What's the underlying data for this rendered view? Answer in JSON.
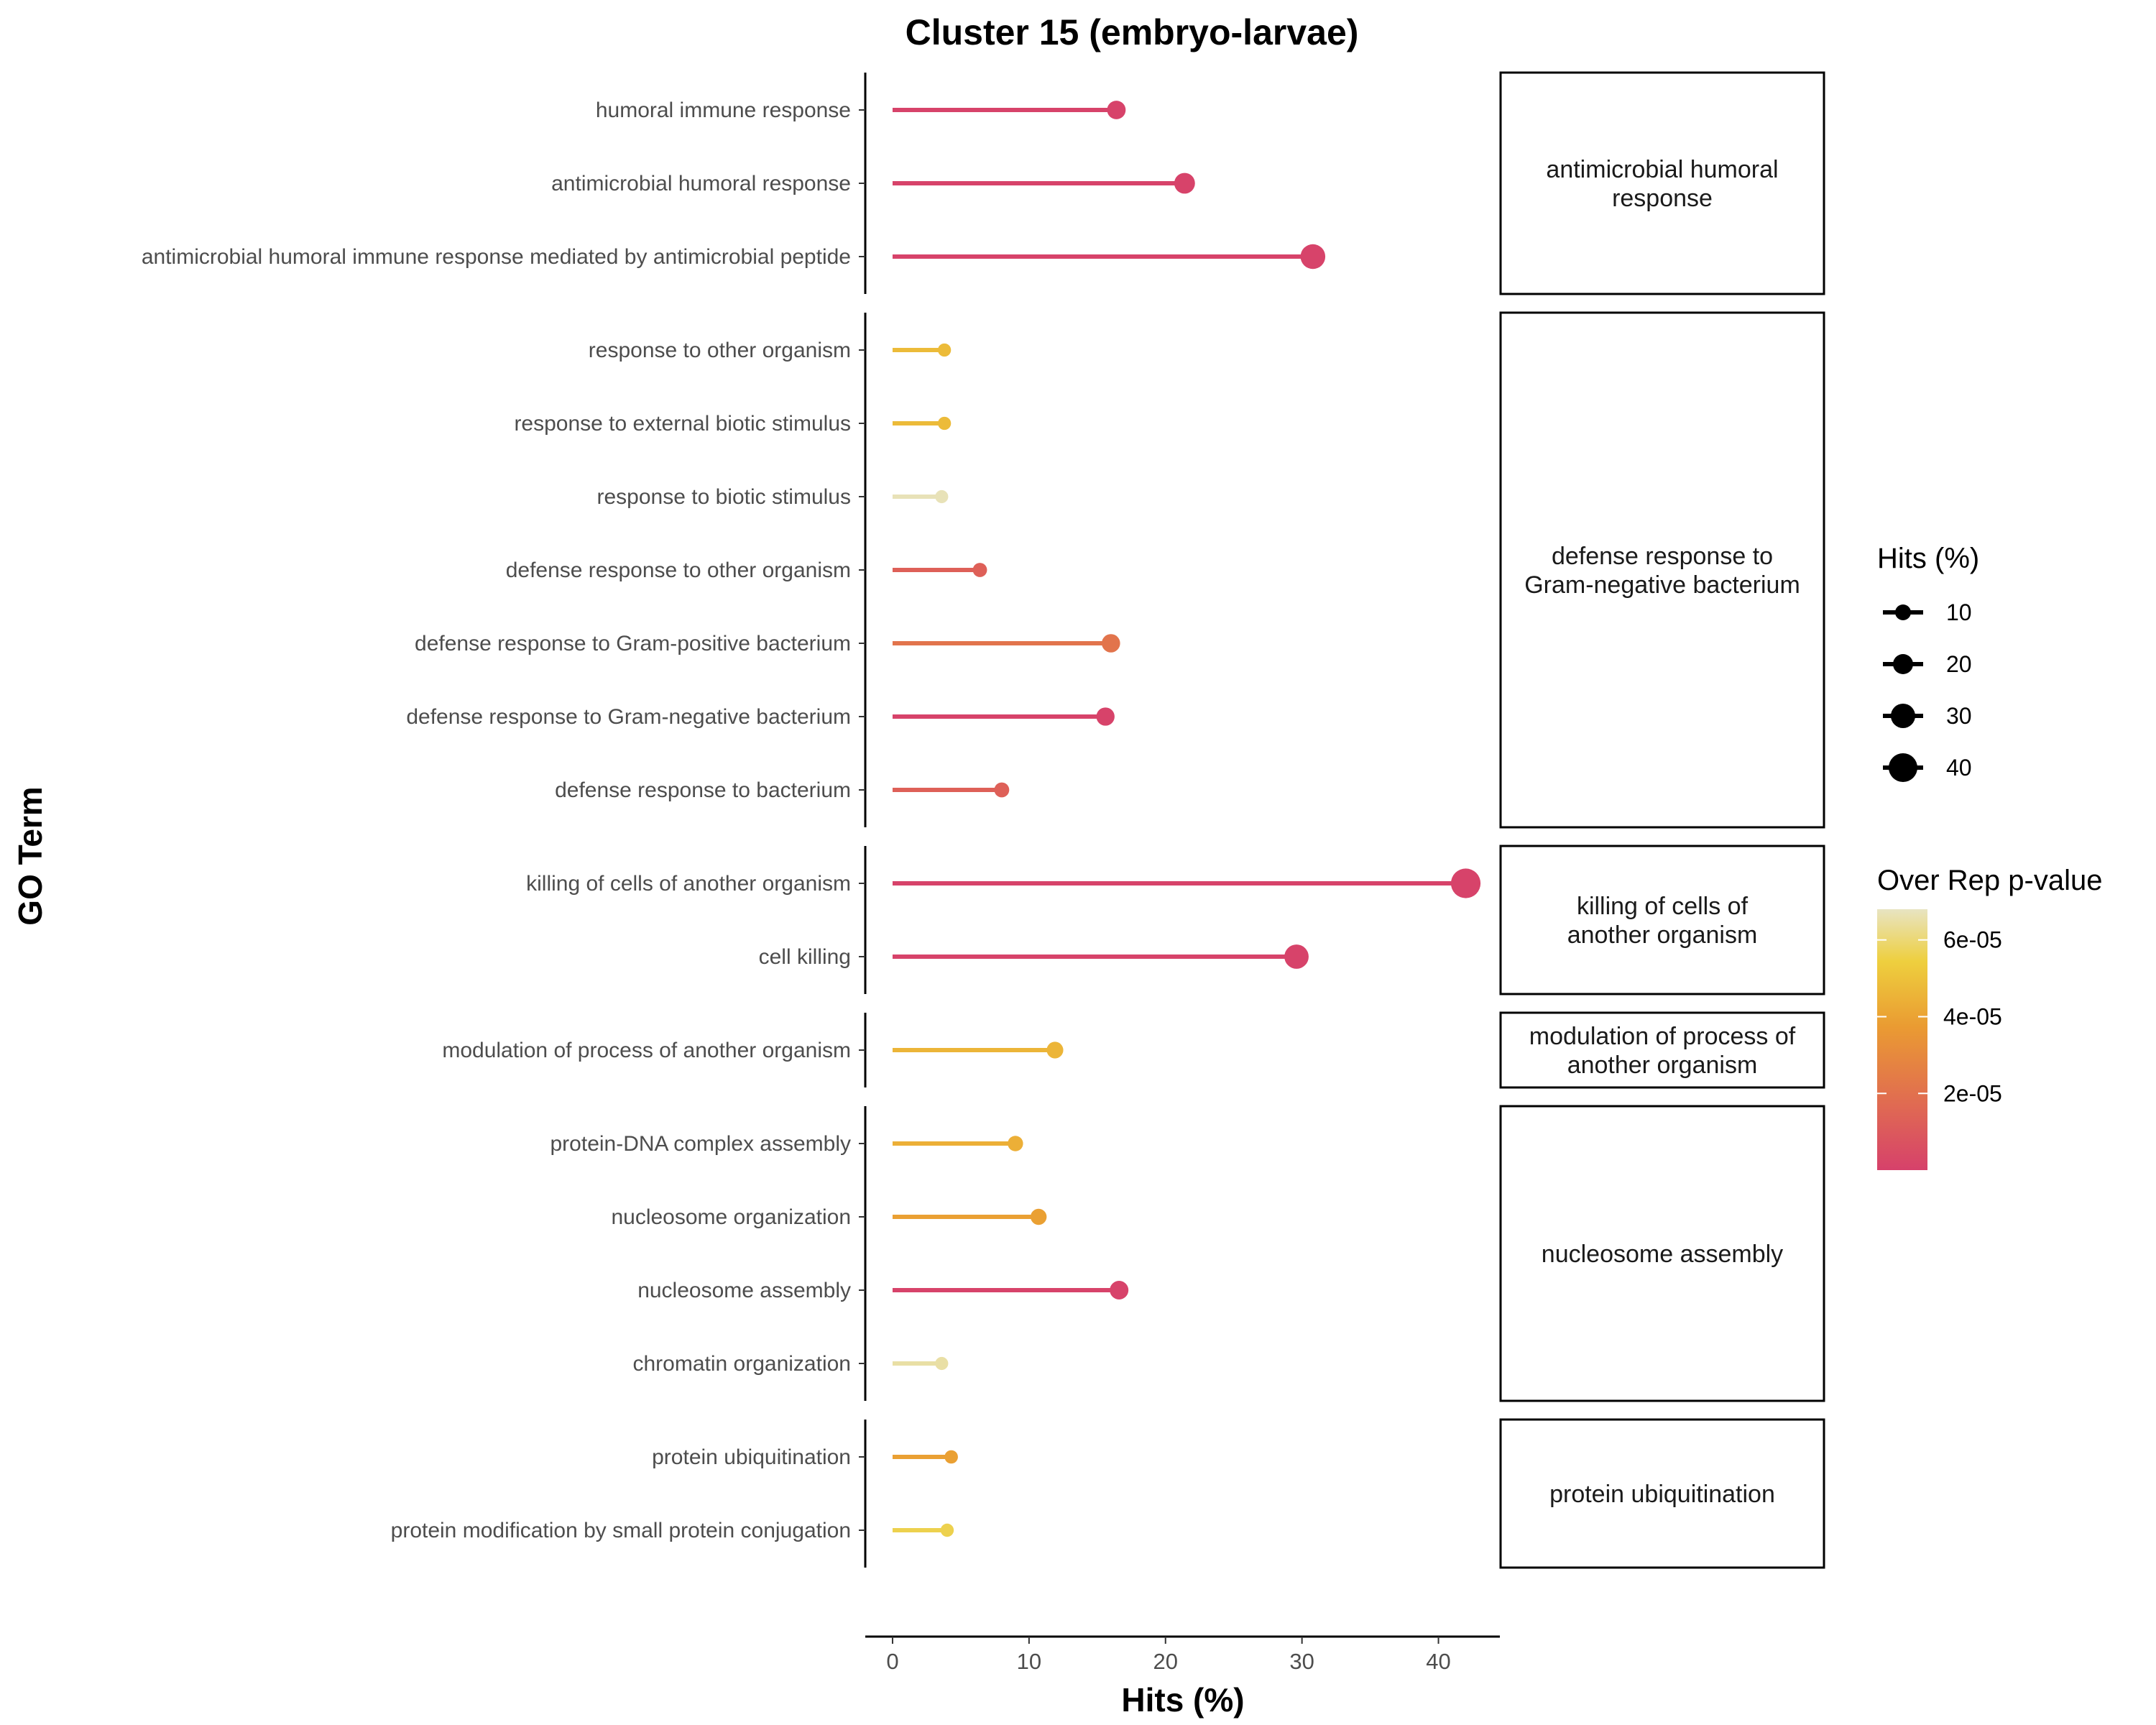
{
  "chart_data": {
    "type": "lollipop",
    "title": "Cluster 15 (embryo-larvae)",
    "xlabel": "Hits (%)",
    "ylabel": "GO Term",
    "xlim": [
      -2,
      44.5
    ],
    "xticks": [
      0,
      10,
      20,
      30,
      40
    ],
    "grid": false,
    "legend_position": "right",
    "color_scale": {
      "title": "Over Rep p-value",
      "domain": [
        1e-08,
        6.8e-05
      ],
      "ticks": [
        2e-05,
        4e-05,
        6e-05
      ],
      "tick_labels": [
        "2e-05",
        "4e-05",
        "6e-05"
      ],
      "colors": [
        "#d6416b",
        "#e06a52",
        "#ea9b32",
        "#eecf3e",
        "#e8e4c2"
      ]
    },
    "size_legend": {
      "title": "Hits (%)",
      "values": [
        10,
        20,
        30,
        40
      ],
      "labels": [
        "10",
        "20",
        "30",
        "40"
      ]
    },
    "facets": [
      {
        "label_lines": [
          "antimicrobial humoral",
          "response"
        ],
        "terms": [
          {
            "term": "humoral immune response",
            "hits": 16.4,
            "pvalue": 1e-06
          },
          {
            "term": "antimicrobial humoral response",
            "hits": 21.4,
            "pvalue": 1e-06
          },
          {
            "term": "antimicrobial humoral immune response mediated by antimicrobial peptide",
            "hits": 30.8,
            "pvalue": 1e-06
          }
        ]
      },
      {
        "label_lines": [
          "defense response to",
          "Gram-negative bacterium"
        ],
        "terms": [
          {
            "term": "response to other organism",
            "hits": 3.8,
            "pvalue": 4.8e-05
          },
          {
            "term": "response to external biotic stimulus",
            "hits": 3.8,
            "pvalue": 4.8e-05
          },
          {
            "term": "response to biotic stimulus",
            "hits": 3.6,
            "pvalue": 6.7e-05
          },
          {
            "term": "defense response to other organism",
            "hits": 6.4,
            "pvalue": 1.3e-05
          },
          {
            "term": "defense response to Gram-positive bacterium",
            "hits": 16.0,
            "pvalue": 2.1e-05
          },
          {
            "term": "defense response to Gram-negative bacterium",
            "hits": 15.6,
            "pvalue": 1e-06
          },
          {
            "term": "defense response to bacterium",
            "hits": 8.0,
            "pvalue": 1.3e-05
          }
        ]
      },
      {
        "label_lines": [
          "killing of cells of",
          "another organism"
        ],
        "terms": [
          {
            "term": "killing of cells of another organism",
            "hits": 42.0,
            "pvalue": 1e-06
          },
          {
            "term": "cell killing",
            "hits": 29.6,
            "pvalue": 1e-06
          }
        ]
      },
      {
        "label_lines": [
          "modulation of process of",
          "another organism"
        ],
        "terms": [
          {
            "term": "modulation of process of another organism",
            "hits": 11.9,
            "pvalue": 4.6e-05
          }
        ]
      },
      {
        "label_lines": [
          "nucleosome assembly"
        ],
        "terms": [
          {
            "term": "protein-DNA complex assembly",
            "hits": 9.0,
            "pvalue": 4.4e-05
          },
          {
            "term": "nucleosome organization",
            "hits": 10.7,
            "pvalue": 3.9e-05
          },
          {
            "term": "nucleosome assembly",
            "hits": 16.6,
            "pvalue": 1e-06
          },
          {
            "term": "chromatin organization",
            "hits": 3.6,
            "pvalue": 6.5e-05
          }
        ]
      },
      {
        "label_lines": [
          "protein ubiquitination"
        ],
        "terms": [
          {
            "term": "protein ubiquitination",
            "hits": 4.3,
            "pvalue": 3.9e-05
          },
          {
            "term": "protein modification by small protein conjugation",
            "hits": 4.0,
            "pvalue": 5.6e-05
          }
        ]
      }
    ]
  }
}
